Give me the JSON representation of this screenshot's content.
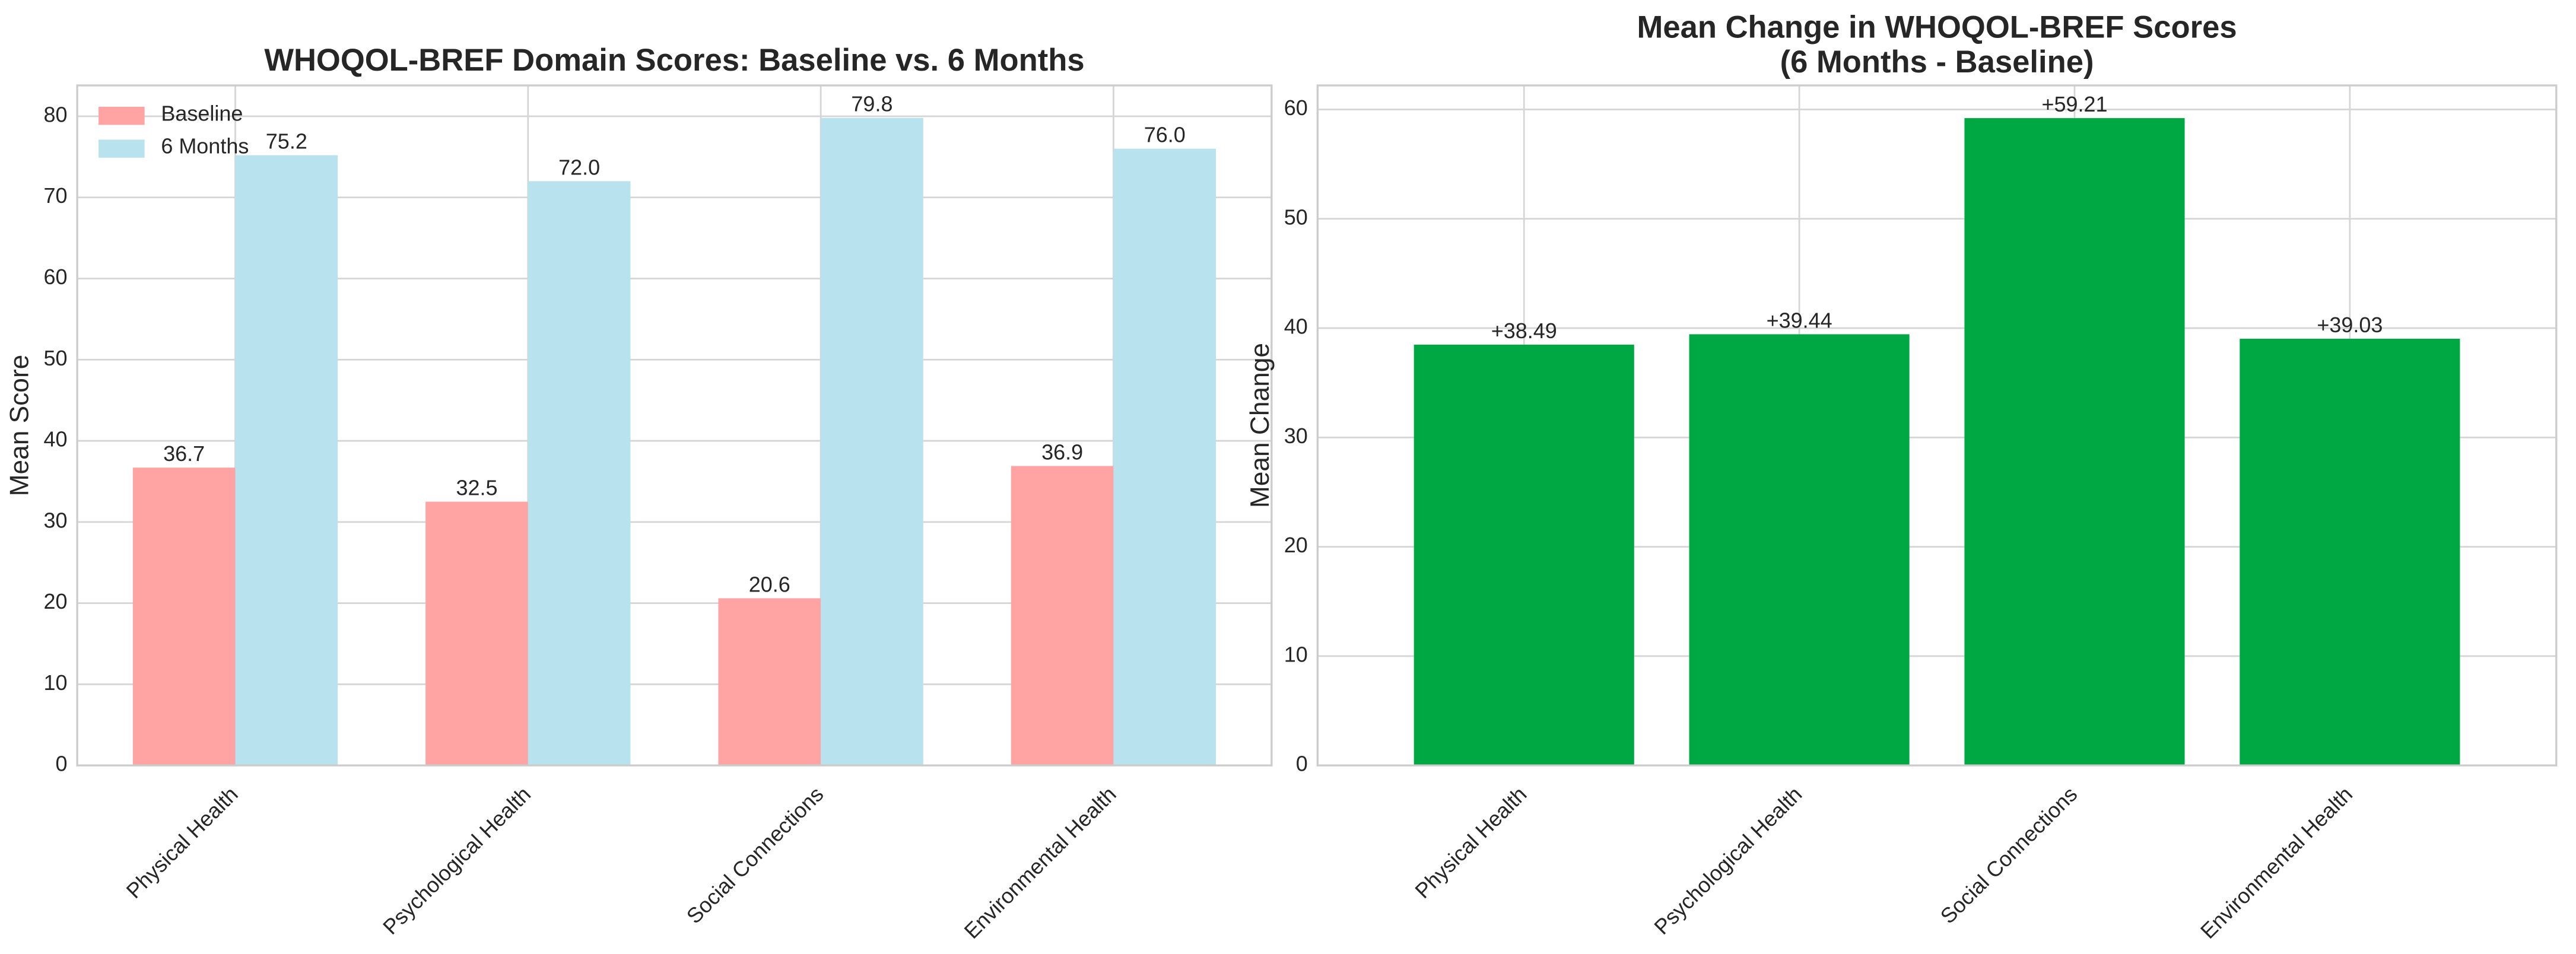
{
  "chart_data": [
    {
      "type": "bar",
      "title": "WHOQOL-BREF Domain Scores: Baseline vs. 6 Months",
      "y_label": "Mean Score",
      "categories": [
        "Physical Health",
        "Psychological Health",
        "Social Connections",
        "Environmental Health"
      ],
      "series": [
        {
          "name": "Baseline",
          "color": "#ffa3a3",
          "values": [
            36.7,
            32.5,
            20.6,
            36.9
          ]
        },
        {
          "name": "6 Months",
          "color": "#b8e2ee",
          "values": [
            75.2,
            72.0,
            79.8,
            76.0
          ]
        }
      ],
      "value_labels": [
        [
          "36.7",
          "32.5",
          "20.6",
          "36.9"
        ],
        [
          "75.2",
          "72.0",
          "79.8",
          "76.0"
        ]
      ],
      "ylim": [
        0,
        83.8
      ],
      "yticks": [
        0,
        10,
        20,
        30,
        40,
        50,
        60,
        70,
        80
      ],
      "grid": true,
      "legend": "upper-left"
    },
    {
      "type": "bar",
      "title": [
        "Mean Change in WHOQOL-BREF Scores",
        "(6 Months - Baseline)"
      ],
      "y_label": "Mean Change",
      "categories": [
        "Physical Health",
        "Psychological Health",
        "Social Connections",
        "Environmental Health"
      ],
      "values": [
        38.49,
        39.44,
        59.21,
        39.03
      ],
      "value_labels": [
        "+38.49",
        "+39.44",
        "+59.21",
        "+39.03"
      ],
      "color": "#00a844",
      "ylim": [
        0,
        62.2
      ],
      "yticks": [
        0,
        10,
        20,
        30,
        40,
        50,
        60
      ],
      "grid": true
    }
  ]
}
